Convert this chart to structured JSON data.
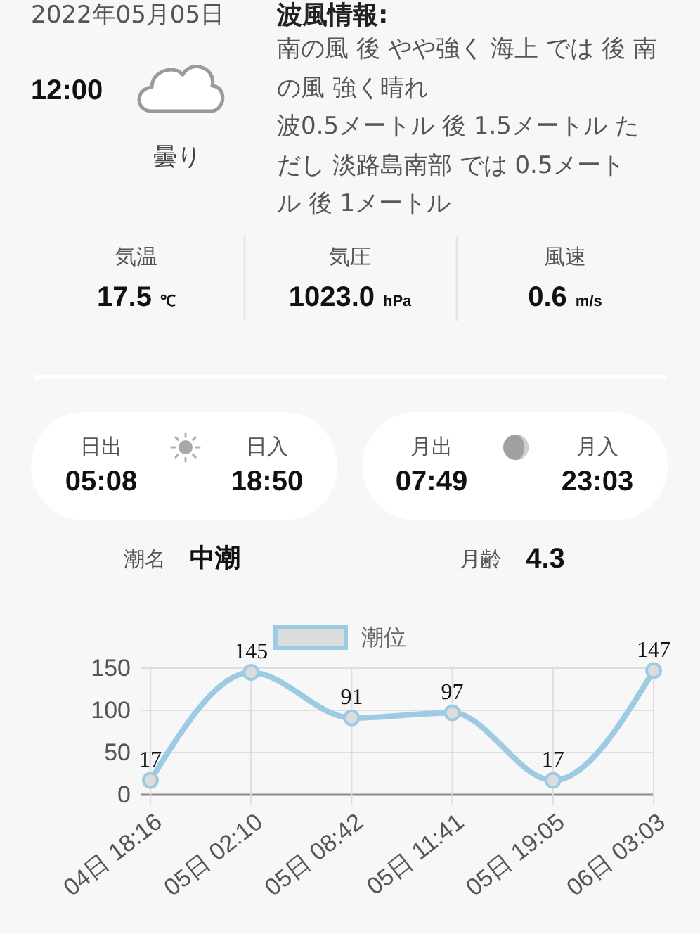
{
  "chart_data": {
    "type": "line",
    "categories": [
      "04日 18:16",
      "05日 02:10",
      "05日 08:42",
      "05日 11:41",
      "05日 19:05",
      "06日 03:03"
    ],
    "series": [
      {
        "name": "潮位",
        "color": "#9ecbe4",
        "values": [
          17,
          145,
          91,
          97,
          17,
          147
        ]
      }
    ],
    "ylim": [
      0,
      150
    ],
    "yticks": [
      0,
      50,
      100,
      150
    ],
    "grid": true,
    "legend": "top",
    "marker": "circle",
    "data_labels": true,
    "annotations": [
      "2022年05月05日",
      "12:00",
      "曇り",
      "波風情報:",
      "南の風 後 やや強く 海上 では 後 南の風 強く晴れ",
      "波0.5メートル 後 1.5メートル ただし 淡路島南部 では 0.5メートル 後 1メートル",
      "気温",
      "17.5",
      "℃",
      "気圧",
      "1023.0",
      "hPa",
      "風速",
      "0.6",
      "m/s",
      "日出",
      "05:08",
      "日入",
      "18:50",
      "月出",
      "07:49",
      "月入",
      "23:03",
      "潮名",
      "中潮",
      "月齢",
      "4.3"
    ]
  }
}
